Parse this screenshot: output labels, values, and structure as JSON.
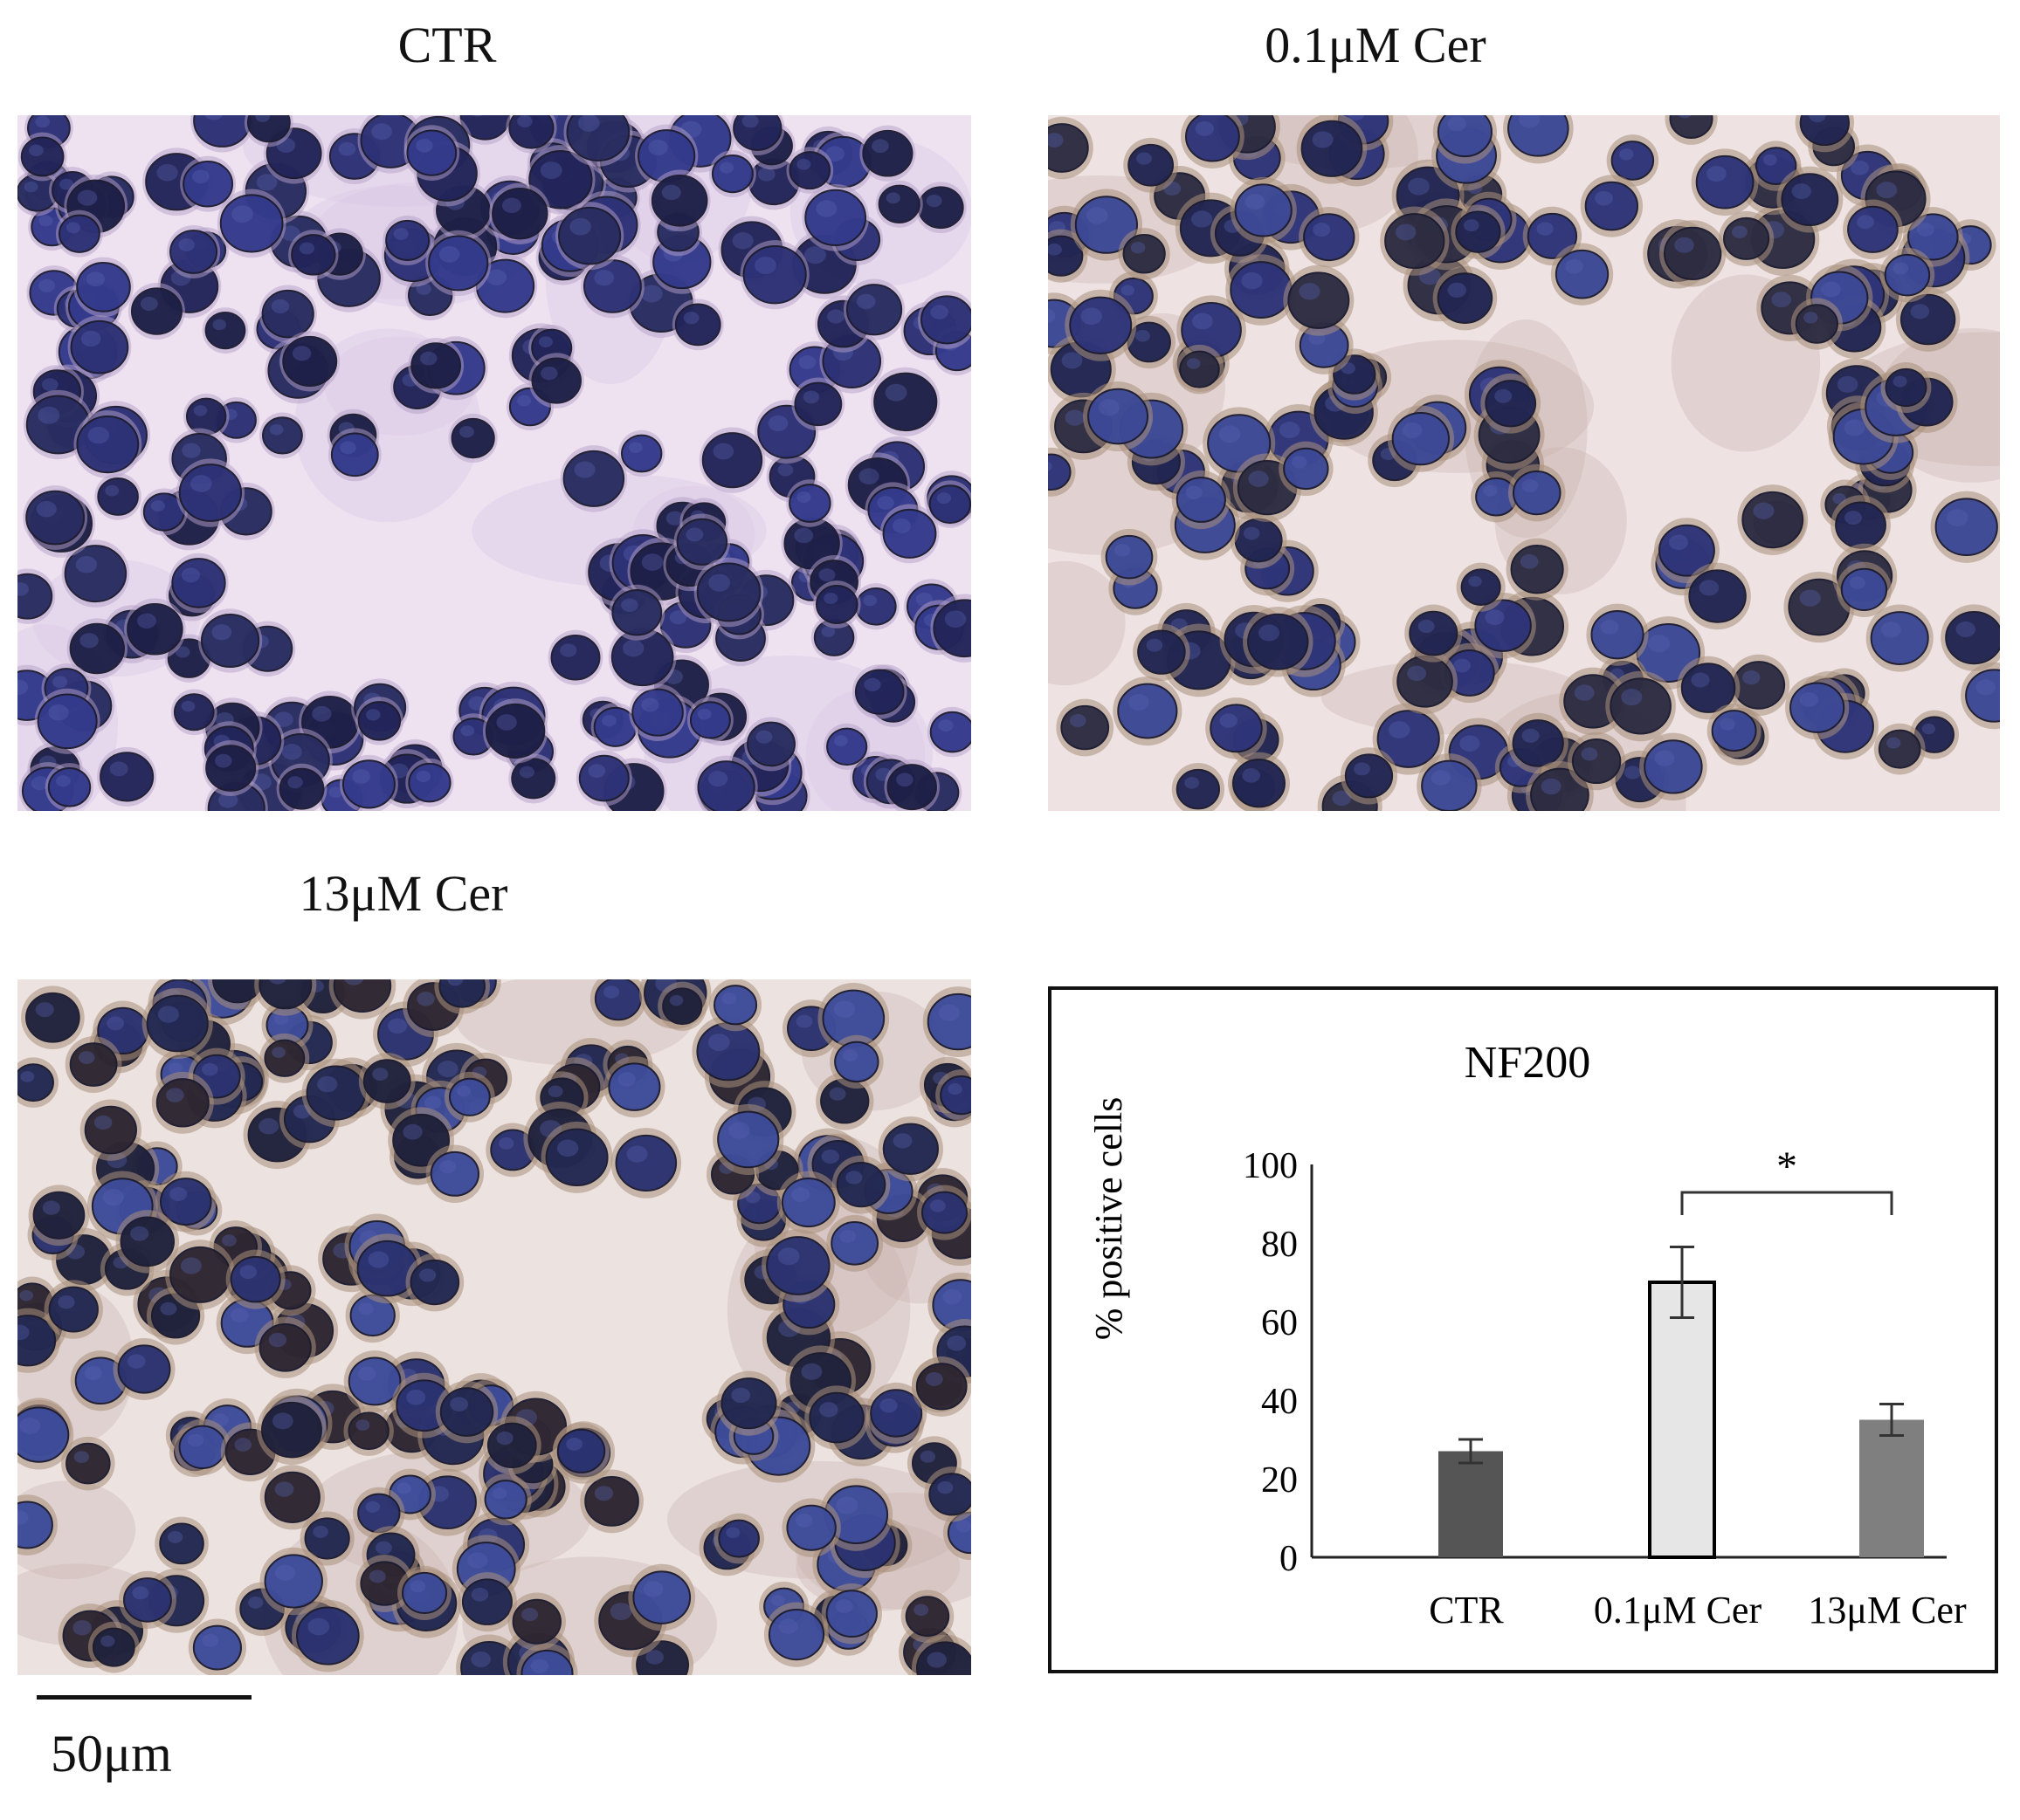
{
  "panels": [
    {
      "title": "CTR"
    },
    {
      "title": "0.1μM Cer"
    },
    {
      "title": "13μM Cer"
    }
  ],
  "scale_bar": {
    "label": "50μm"
  },
  "chart_data": {
    "type": "bar",
    "title": "NF200",
    "ylabel": "% positive cells",
    "xlabel": "",
    "categories": [
      "CTR",
      "0.1μM Cer",
      "13μM Cer"
    ],
    "values": [
      27,
      70,
      35
    ],
    "errors": [
      3,
      9,
      4
    ],
    "ylim": [
      0,
      100
    ],
    "yticks": [
      0,
      20,
      40,
      60,
      80,
      100
    ],
    "bar_colors": [
      "#555555",
      "#e6e6e6",
      "#7f7f7f"
    ],
    "significance": {
      "between": [
        "0.1μM Cer",
        "13μM Cer"
      ],
      "label": "*"
    },
    "grid": false
  }
}
